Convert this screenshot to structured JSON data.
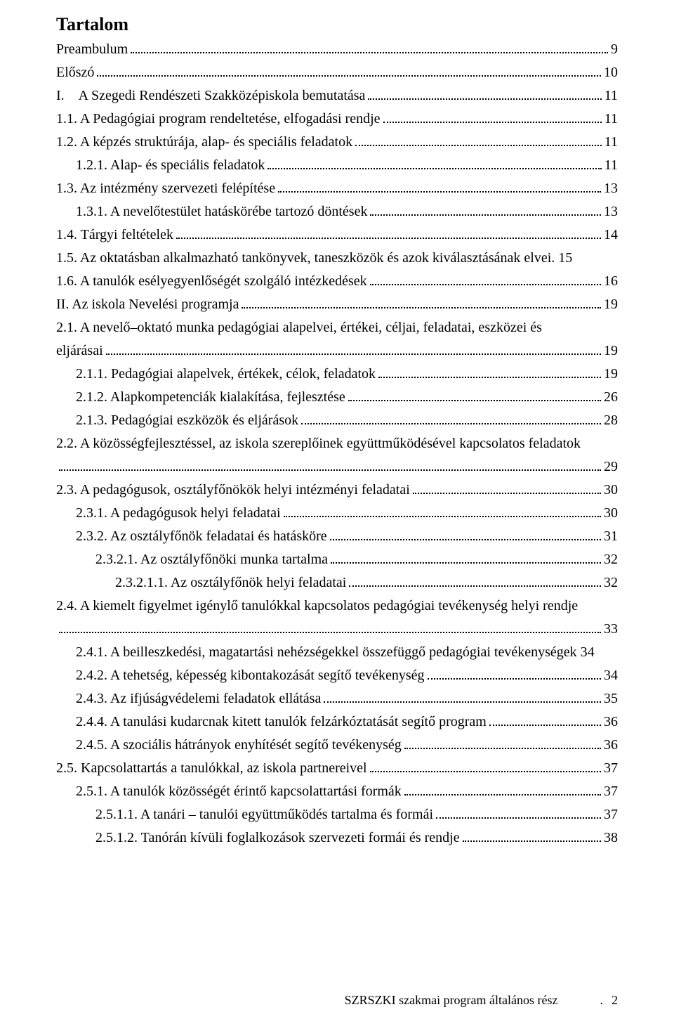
{
  "title": "Tartalom",
  "entries": [
    {
      "indent": 0,
      "text": "Preambulum",
      "page": "9"
    },
    {
      "indent": 0,
      "text": "Előszó",
      "page": "10"
    },
    {
      "indent": 0,
      "text": "I.    A Szegedi Rendészeti Szakközépiskola bemutatása",
      "page": "11"
    },
    {
      "indent": 0,
      "text": "1.1. A Pedagógiai program rendeltetése, elfogadási rendje",
      "page": "11"
    },
    {
      "indent": 0,
      "text": "1.2. A képzés struktúrája, alap- és speciális feladatok",
      "page": "11"
    },
    {
      "indent": 1,
      "text": "1.2.1. Alap- és speciális feladatok",
      "page": "11"
    },
    {
      "indent": 0,
      "text": "1.3. Az intézmény szervezeti felépítése",
      "page": "13"
    },
    {
      "indent": 1,
      "text": "1.3.1. A nevelőtestület hatáskörébe tartozó döntések",
      "page": "13"
    },
    {
      "indent": 0,
      "text": "1.4. Tárgyi feltételek",
      "page": "14"
    },
    {
      "indent": 0,
      "text": "1.5. Az oktatásban alkalmazható tankönyvek, taneszközök és azok kiválasztásának elvei.",
      "page": "15",
      "noleader": true
    },
    {
      "indent": 0,
      "text": "1.6. A tanulók esélyegyenlőségét szolgáló intézkedések",
      "page": "16"
    },
    {
      "indent": 0,
      "text": "II. Az iskola Nevelési programja",
      "page": "19"
    },
    {
      "indent": 0,
      "multiline": true,
      "line1": "2.1. A nevelő–oktató munka pedagógiai alapelvei, értékei, céljai, feladatai, eszközei és",
      "line2": "eljárásai",
      "page": "19"
    },
    {
      "indent": 1,
      "text": "2.1.1. Pedagógiai alapelvek, értékek, célok, feladatok",
      "page": "19"
    },
    {
      "indent": 1,
      "text": "2.1.2. Alapkompetenciák kialakítása, fejlesztése",
      "page": "26"
    },
    {
      "indent": 1,
      "text": "2.1.3. Pedagógiai eszközök és eljárások",
      "page": "28"
    },
    {
      "indent": 0,
      "multiline": true,
      "line1": "2.2. A közösségfejlesztéssel, az iskola szereplőinek együttműködésével kapcsolatos feladatok",
      "line2": "",
      "page": "29"
    },
    {
      "indent": 0,
      "text": "2.3. A pedagógusok, osztályfőnökök helyi intézményi feladatai",
      "page": "30"
    },
    {
      "indent": 1,
      "text": "2.3.1. A pedagógusok helyi feladatai",
      "page": "30"
    },
    {
      "indent": 1,
      "text": "2.3.2. Az osztályfőnök feladatai és hatásköre",
      "page": "31"
    },
    {
      "indent": 2,
      "text": "2.3.2.1. Az osztályfőnöki munka tartalma",
      "page": "32"
    },
    {
      "indent": 3,
      "text": "2.3.2.1.1. Az osztályfőnök helyi feladatai",
      "page": "32"
    },
    {
      "indent": 0,
      "multiline": true,
      "line1": "2.4. A kiemelt figyelmet igénylő tanulókkal kapcsolatos pedagógiai tevékenység helyi rendje",
      "line2": "",
      "page": "33"
    },
    {
      "indent": 1,
      "text": "2.4.1. A beilleszkedési, magatartási nehézségekkel összefüggő pedagógiai tevékenységek",
      "page": "34",
      "noleader": true
    },
    {
      "indent": 1,
      "text": "2.4.2. A tehetség, képesség kibontakozását segítő tevékenység",
      "page": "34"
    },
    {
      "indent": 1,
      "text": "2.4.3. Az ifjúságvédelemi feladatok ellátása",
      "page": "35"
    },
    {
      "indent": 1,
      "text": "2.4.4. A tanulási kudarcnak kitett tanulók felzárkóztatását segítő program",
      "page": "36"
    },
    {
      "indent": 1,
      "text": "2.4.5. A szociális hátrányok enyhítését segítő tevékenység",
      "page": "36"
    },
    {
      "indent": 0,
      "text": "2.5. Kapcsolattartás a tanulókkal, az iskola partnereivel",
      "page": "37"
    },
    {
      "indent": 1,
      "text": "2.5.1. A tanulók közösségét érintő kapcsolattartási formák",
      "page": "37"
    },
    {
      "indent": 2,
      "text": "2.5.1.1. A tanári – tanulói együttműködés tartalma és formái",
      "page": "37"
    },
    {
      "indent": 2,
      "text": "2.5.1.2. Tanórán kívüli foglalkozások szervezeti formái és rendje",
      "page": "38"
    }
  ],
  "footer": {
    "text": "SZRSZKI szakmai program általános rész",
    "sep": ".",
    "page": "2"
  }
}
